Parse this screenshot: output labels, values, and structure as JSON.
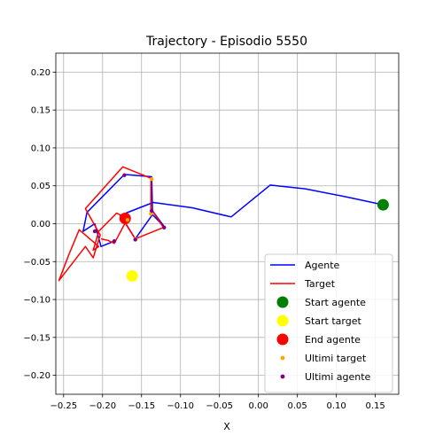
{
  "chart_data": {
    "type": "line",
    "title": "Trajectory - Episodio 5550",
    "xlabel": "X",
    "ylabel": "",
    "xlim": [
      -0.26,
      0.18
    ],
    "ylim": [
      -0.225,
      0.225
    ],
    "xticks": [
      -0.25,
      -0.2,
      -0.15,
      -0.1,
      -0.05,
      0.0,
      0.05,
      0.1,
      0.15
    ],
    "xtick_labels": [
      "−0.25",
      "−0.20",
      "−0.15",
      "−0.10",
      "−0.05",
      "0.00",
      "0.05",
      "0.10",
      "0.15"
    ],
    "yticks": [
      -0.2,
      -0.15,
      -0.1,
      -0.05,
      0.0,
      0.05,
      0.1,
      0.15,
      0.2
    ],
    "ytick_labels": [
      "−0.20",
      "−0.15",
      "−0.10",
      "−0.05",
      "0.00",
      "0.05",
      "0.10",
      "0.15",
      "0.20"
    ],
    "grid": true,
    "legend_position": "lower-right",
    "series": [
      {
        "name": "Agente",
        "kind": "line",
        "color": "#0000ff",
        "x": [
          0.16,
          0.115,
          0.06,
          0.015,
          -0.035,
          -0.085,
          -0.135,
          -0.17,
          -0.175,
          -0.158,
          -0.136,
          -0.12,
          -0.136,
          -0.137,
          -0.172,
          -0.22,
          -0.225,
          -0.21,
          -0.202,
          -0.185
        ],
        "y": [
          0.025,
          0.035,
          0.046,
          0.051,
          0.009,
          0.021,
          0.028,
          0.014,
          0.008,
          -0.02,
          0.012,
          -0.005,
          0.017,
          0.062,
          0.065,
          0.015,
          -0.01,
          0.0,
          -0.03,
          -0.023
        ]
      },
      {
        "name": "Target",
        "kind": "line",
        "color": "#ff0000",
        "x": [
          -0.165,
          -0.182,
          -0.205,
          -0.212,
          -0.205,
          -0.23,
          -0.243,
          -0.256,
          -0.222,
          -0.212,
          -0.203,
          -0.222,
          -0.174,
          -0.138,
          -0.138,
          -0.134,
          -0.122,
          -0.158,
          -0.178,
          -0.17,
          -0.185,
          -0.193,
          -0.202
        ],
        "y": [
          0.005,
          0.014,
          -0.01,
          -0.035,
          -0.03,
          -0.008,
          -0.04,
          -0.075,
          -0.03,
          -0.045,
          -0.015,
          0.02,
          0.075,
          0.06,
          0.018,
          0.014,
          -0.005,
          -0.02,
          0.012,
          0.003,
          -0.026,
          -0.022,
          -0.02
        ]
      }
    ],
    "markers": [
      {
        "name": "Start agente",
        "color": "#008000",
        "x": 0.16,
        "y": 0.025,
        "size": "large"
      },
      {
        "name": "Start target",
        "color": "#ffff00",
        "x": -0.162,
        "y": -0.069,
        "size": "large"
      },
      {
        "name": "End agente",
        "color": "#ff0000",
        "x": -0.171,
        "y": 0.007,
        "size": "large"
      }
    ],
    "scatter": [
      {
        "name": "Ultimi target",
        "color": "#ffa500",
        "x": [
          -0.168,
          -0.137,
          -0.138,
          -0.158
        ],
        "y": [
          0.005,
          0.059,
          0.013,
          -0.02
        ]
      },
      {
        "name": "Ultimi agente",
        "color": "#800080",
        "x": [
          -0.172,
          -0.137,
          -0.158,
          -0.121,
          -0.21,
          -0.185
        ],
        "y": [
          0.064,
          0.017,
          -0.021,
          -0.005,
          -0.01,
          -0.023
        ]
      }
    ],
    "legend": [
      {
        "label": "Agente",
        "kind": "line",
        "color": "#0000ff"
      },
      {
        "label": "Target",
        "kind": "line",
        "color": "#ff0000"
      },
      {
        "label": "Start agente",
        "kind": "big",
        "color": "#008000"
      },
      {
        "label": "Start target",
        "kind": "big",
        "color": "#ffff00"
      },
      {
        "label": "End agente",
        "kind": "big",
        "color": "#ff0000"
      },
      {
        "label": "Ultimi target",
        "kind": "small",
        "color": "#ffa500"
      },
      {
        "label": "Ultimi agente",
        "kind": "small",
        "color": "#800080"
      }
    ]
  }
}
